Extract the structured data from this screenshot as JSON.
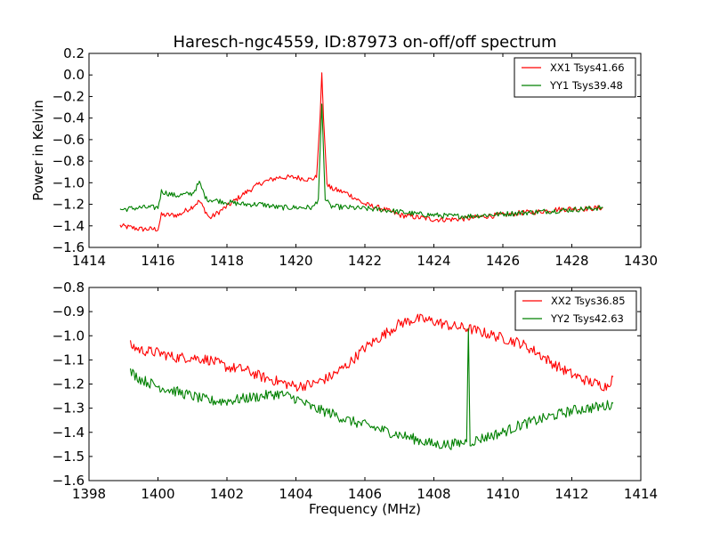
{
  "chart_data": [
    {
      "type": "line",
      "title": "Haresch-ngc4559, ID:87973 on-off/off spectrum",
      "xlabel": "",
      "ylabel": "Power in Kelvin",
      "xlim": [
        1414,
        1430
      ],
      "ylim": [
        -1.6,
        0.2
      ],
      "xticks": [
        "1414",
        "1416",
        "1418",
        "1420",
        "1422",
        "1424",
        "1426",
        "1428",
        "1430"
      ],
      "yticks": [
        "−1.6",
        "−1.4",
        "−1.2",
        "−1.0",
        "−0.8",
        "−0.6",
        "−0.4",
        "−0.2",
        "0.0",
        "0.2"
      ],
      "legend_position": "top-right",
      "grid": false,
      "series": [
        {
          "name": "XX1 Tsys41.66",
          "color": "#ff0000",
          "x": [
            1414.9,
            1415.5,
            1416.0,
            1416.1,
            1416.6,
            1417.0,
            1417.2,
            1417.5,
            1418.0,
            1418.5,
            1419.0,
            1419.5,
            1420.0,
            1420.4,
            1420.6,
            1420.7,
            1420.75,
            1420.8,
            1420.9,
            1421.0,
            1421.5,
            1422.0,
            1422.5,
            1423.0,
            1423.5,
            1424.0,
            1424.5,
            1425.0,
            1425.5,
            1426.0,
            1426.5,
            1427.0,
            1427.5,
            1428.0,
            1428.5,
            1428.9
          ],
          "y": [
            -1.4,
            -1.43,
            -1.43,
            -1.3,
            -1.3,
            -1.22,
            -1.17,
            -1.33,
            -1.22,
            -1.1,
            -1.0,
            -0.95,
            -0.95,
            -0.97,
            -0.95,
            -0.4,
            0.02,
            -0.4,
            -1.0,
            -1.05,
            -1.1,
            -1.2,
            -1.24,
            -1.3,
            -1.32,
            -1.34,
            -1.34,
            -1.33,
            -1.31,
            -1.3,
            -1.28,
            -1.27,
            -1.25,
            -1.24,
            -1.24,
            -1.23
          ]
        },
        {
          "name": "YY1 Tsys39.48",
          "color": "#008000",
          "x": [
            1414.9,
            1415.5,
            1416.0,
            1416.1,
            1416.5,
            1417.0,
            1417.2,
            1417.4,
            1418.0,
            1418.5,
            1419.0,
            1419.5,
            1420.0,
            1420.5,
            1420.65,
            1420.75,
            1420.85,
            1421.0,
            1421.5,
            1422.0,
            1422.5,
            1423.0,
            1423.5,
            1424.0,
            1424.5,
            1425.0,
            1425.5,
            1426.0,
            1426.5,
            1427.0,
            1427.5,
            1428.0,
            1428.5,
            1428.9
          ],
          "y": [
            -1.25,
            -1.23,
            -1.23,
            -1.08,
            -1.12,
            -1.1,
            -1.0,
            -1.15,
            -1.18,
            -1.2,
            -1.2,
            -1.23,
            -1.23,
            -1.23,
            -1.15,
            -0.27,
            -1.15,
            -1.22,
            -1.23,
            -1.24,
            -1.25,
            -1.27,
            -1.29,
            -1.3,
            -1.31,
            -1.31,
            -1.3,
            -1.29,
            -1.28,
            -1.27,
            -1.26,
            -1.25,
            -1.24,
            -1.23
          ]
        }
      ]
    },
    {
      "type": "line",
      "title": "",
      "xlabel": "Frequency (MHz)",
      "ylabel": "",
      "xlim": [
        1398,
        1414
      ],
      "ylim": [
        -1.6,
        -0.8
      ],
      "xticks": [
        "1398",
        "1400",
        "1402",
        "1404",
        "1406",
        "1408",
        "1410",
        "1412",
        "1414"
      ],
      "yticks": [
        "−1.6",
        "−1.5",
        "−1.4",
        "−1.3",
        "−1.2",
        "−1.1",
        "−1.0",
        "−0.9",
        "−0.8"
      ],
      "legend_position": "top-right",
      "grid": false,
      "series": [
        {
          "name": "XX2 Tsys36.85",
          "color": "#ff0000",
          "x": [
            1399.2,
            1399.5,
            1400.0,
            1400.5,
            1401.0,
            1401.5,
            1402.0,
            1402.5,
            1403.0,
            1403.5,
            1404.0,
            1404.5,
            1405.0,
            1405.5,
            1406.0,
            1406.5,
            1407.0,
            1407.5,
            1408.0,
            1408.5,
            1409.0,
            1409.5,
            1410.0,
            1410.5,
            1411.0,
            1411.5,
            1412.0,
            1412.5,
            1413.0,
            1413.2
          ],
          "y": [
            -1.04,
            -1.06,
            -1.07,
            -1.09,
            -1.09,
            -1.1,
            -1.13,
            -1.14,
            -1.17,
            -1.19,
            -1.21,
            -1.2,
            -1.17,
            -1.12,
            -1.05,
            -1.0,
            -0.95,
            -0.93,
            -0.94,
            -0.96,
            -0.97,
            -0.99,
            -1.01,
            -1.03,
            -1.07,
            -1.12,
            -1.16,
            -1.19,
            -1.21,
            -1.17
          ]
        },
        {
          "name": "YY2 Tsys42.63",
          "color": "#008000",
          "x": [
            1399.2,
            1399.5,
            1400.0,
            1400.5,
            1401.0,
            1401.5,
            1402.0,
            1402.5,
            1403.0,
            1403.5,
            1404.0,
            1404.5,
            1405.0,
            1405.5,
            1406.0,
            1406.5,
            1407.0,
            1407.5,
            1408.0,
            1408.5,
            1408.95,
            1409.0,
            1409.05,
            1409.5,
            1410.0,
            1410.5,
            1411.0,
            1411.5,
            1412.0,
            1412.5,
            1413.0,
            1413.2
          ],
          "y": [
            -1.15,
            -1.18,
            -1.21,
            -1.23,
            -1.25,
            -1.27,
            -1.27,
            -1.26,
            -1.25,
            -1.24,
            -1.26,
            -1.3,
            -1.32,
            -1.35,
            -1.37,
            -1.39,
            -1.41,
            -1.43,
            -1.45,
            -1.45,
            -1.44,
            -0.97,
            -1.44,
            -1.42,
            -1.4,
            -1.37,
            -1.35,
            -1.33,
            -1.31,
            -1.3,
            -1.29,
            -1.28
          ]
        }
      ]
    }
  ]
}
